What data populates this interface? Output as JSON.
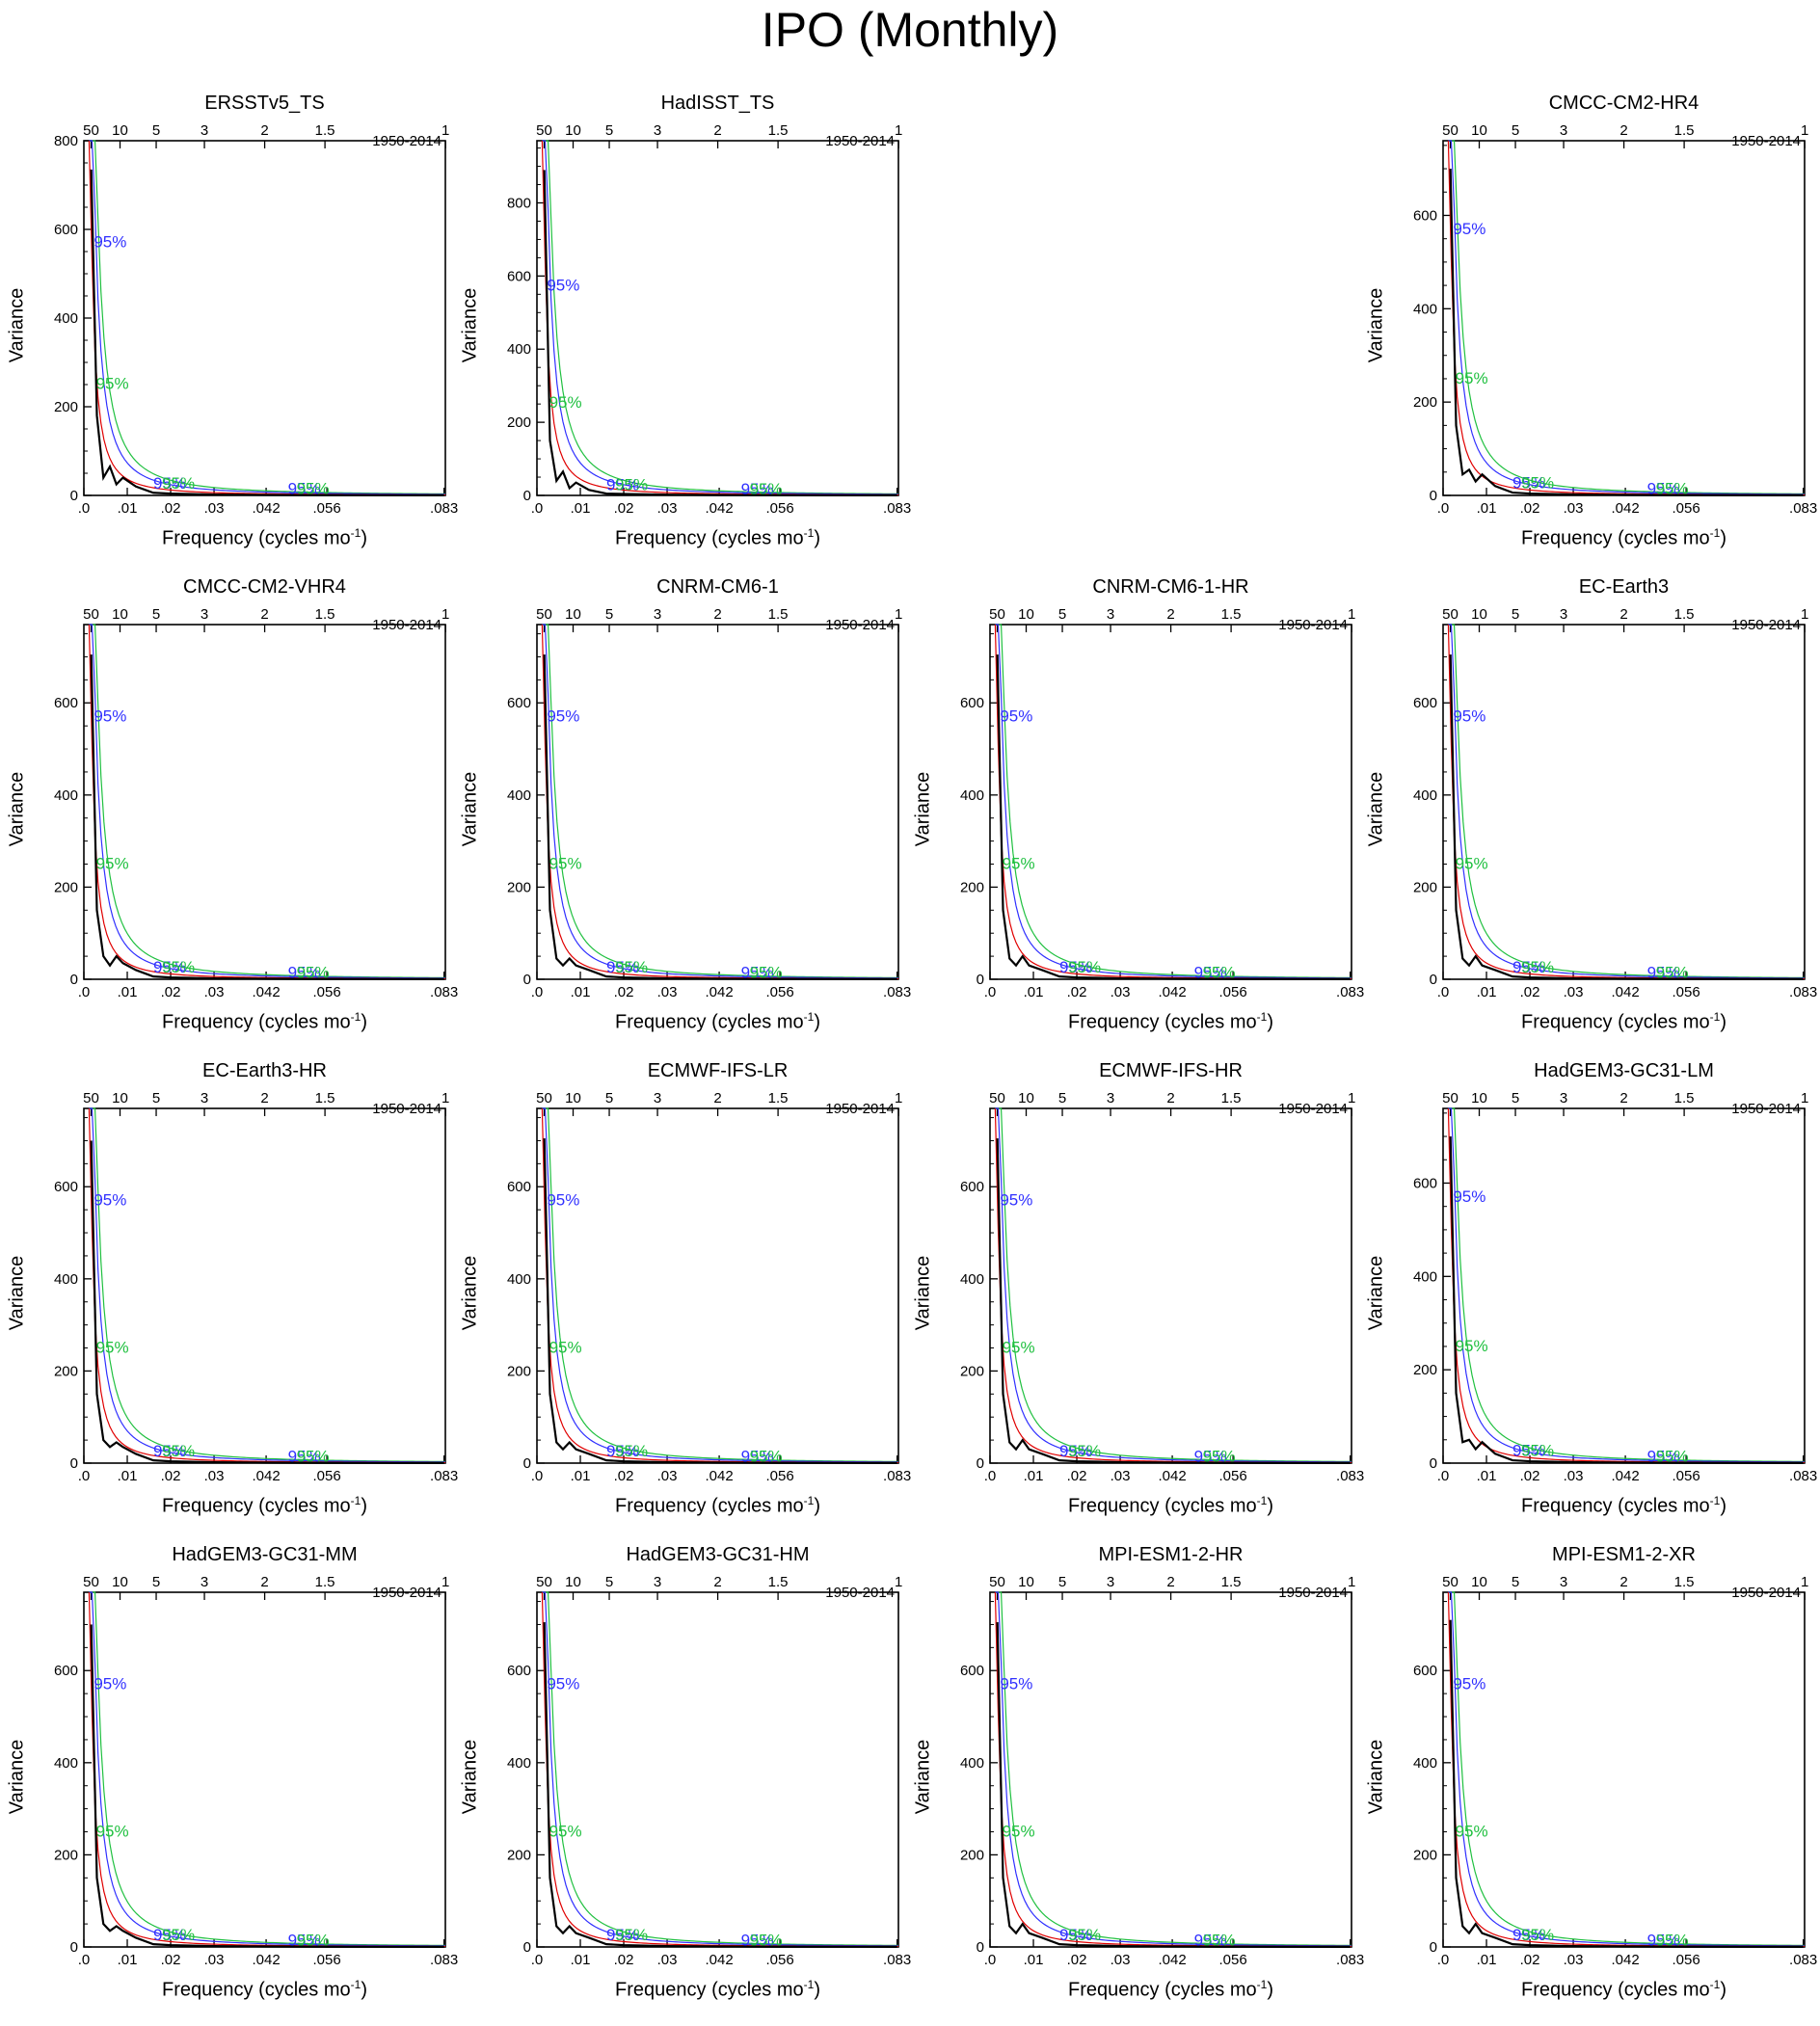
{
  "title": "IPO (Monthly)",
  "common": {
    "period": "1950-2014",
    "xlabel_prefix": "Frequency (cycles mo",
    "xlabel_sup": "-1",
    "xlabel_suffix": ")",
    "ylabel": "Variance",
    "xticks": [
      ".0",
      ".01",
      ".02",
      ".03",
      ".042",
      ".056",
      ".083"
    ],
    "xtick_values": [
      0,
      0.01,
      0.02,
      0.03,
      0.042,
      0.056,
      0.083
    ],
    "top_ticks": [
      "50",
      "10",
      "5",
      "3",
      "2",
      "1.5",
      "1"
    ],
    "top_tick_freqs": [
      0.001667,
      0.008333,
      0.016667,
      0.027778,
      0.041667,
      0.055556,
      0.083333
    ],
    "ci_label": "95%",
    "colors": {
      "spectrum": "#000000",
      "red_noise": "#e00000",
      "ci_blue": "#3030ff",
      "ci_green": "#20c040"
    }
  },
  "chart_data": [
    {
      "type": "line",
      "title": "ERSSTv5_TS",
      "ylim": [
        0,
        800
      ],
      "yticks": [
        0,
        200,
        400,
        600,
        800
      ],
      "row": 0,
      "col": 0,
      "peak": 735,
      "x": [
        0.0017,
        0.003,
        0.0045,
        0.006,
        0.0075,
        0.009,
        0.012,
        0.016,
        0.02,
        0.03,
        0.042,
        0.056,
        0.083
      ],
      "series": [
        {
          "values": [
            735,
            180,
            40,
            65,
            25,
            40,
            20,
            6,
            4,
            2,
            1,
            0.5,
            0.3
          ]
        }
      ]
    },
    {
      "type": "line",
      "title": "HadISST_TS",
      "ylim": [
        0,
        970
      ],
      "yticks": [
        0,
        200,
        400,
        600,
        800
      ],
      "row": 0,
      "col": 1,
      "peak": 890,
      "x": [
        0.0017,
        0.003,
        0.0045,
        0.006,
        0.0075,
        0.009,
        0.012,
        0.016,
        0.02,
        0.03,
        0.042,
        0.056,
        0.083
      ],
      "series": [
        {
          "values": [
            890,
            150,
            40,
            65,
            20,
            35,
            15,
            5,
            4,
            2,
            1,
            0.5,
            0.3
          ]
        }
      ]
    },
    {
      "type": "line",
      "title": "CMCC-CM2-HR4",
      "ylim": [
        0,
        760
      ],
      "yticks": [
        0,
        200,
        400,
        600
      ],
      "row": 0,
      "col": 3,
      "peak": 700,
      "x": [
        0.0017,
        0.003,
        0.0045,
        0.006,
        0.0075,
        0.009,
        0.012,
        0.016,
        0.02,
        0.03,
        0.042,
        0.056,
        0.083
      ],
      "series": [
        {
          "values": [
            700,
            150,
            45,
            55,
            30,
            45,
            20,
            6,
            4,
            2,
            1,
            0.5,
            0.3
          ]
        }
      ]
    },
    {
      "type": "line",
      "title": "CMCC-CM2-VHR4",
      "ylim": [
        0,
        770
      ],
      "yticks": [
        0,
        200,
        400,
        600
      ],
      "row": 1,
      "col": 0,
      "peak": 705,
      "x": [
        0.0017,
        0.003,
        0.0045,
        0.006,
        0.0075,
        0.009,
        0.012,
        0.016,
        0.02,
        0.03,
        0.042,
        0.056,
        0.083
      ],
      "series": [
        {
          "values": [
            705,
            150,
            50,
            30,
            50,
            35,
            20,
            6,
            4,
            2,
            1,
            0.5,
            0.3
          ]
        }
      ]
    },
    {
      "type": "line",
      "title": "CNRM-CM6-1",
      "ylim": [
        0,
        770
      ],
      "yticks": [
        0,
        200,
        400,
        600
      ],
      "row": 1,
      "col": 1,
      "peak": 705,
      "x": [
        0.0017,
        0.003,
        0.0045,
        0.006,
        0.0075,
        0.009,
        0.012,
        0.016,
        0.02,
        0.03,
        0.042,
        0.056,
        0.083
      ],
      "series": [
        {
          "values": [
            705,
            150,
            45,
            30,
            45,
            30,
            20,
            6,
            4,
            2,
            1,
            0.5,
            0.3
          ]
        }
      ]
    },
    {
      "type": "line",
      "title": "CNRM-CM6-1-HR",
      "ylim": [
        0,
        770
      ],
      "yticks": [
        0,
        200,
        400,
        600
      ],
      "row": 1,
      "col": 2,
      "peak": 705,
      "x": [
        0.0017,
        0.003,
        0.0045,
        0.006,
        0.0075,
        0.009,
        0.012,
        0.016,
        0.02,
        0.03,
        0.042,
        0.056,
        0.083
      ],
      "series": [
        {
          "values": [
            705,
            150,
            45,
            30,
            50,
            30,
            20,
            6,
            4,
            2,
            1,
            0.5,
            0.3
          ]
        }
      ]
    },
    {
      "type": "line",
      "title": "EC-Earth3",
      "ylim": [
        0,
        770
      ],
      "yticks": [
        0,
        200,
        400,
        600
      ],
      "row": 1,
      "col": 3,
      "peak": 705,
      "x": [
        0.0017,
        0.003,
        0.0045,
        0.006,
        0.0075,
        0.009,
        0.012,
        0.016,
        0.02,
        0.03,
        0.042,
        0.056,
        0.083
      ],
      "series": [
        {
          "values": [
            705,
            150,
            45,
            30,
            50,
            30,
            20,
            6,
            4,
            2,
            1,
            0.5,
            0.3
          ]
        }
      ]
    },
    {
      "type": "line",
      "title": "EC-Earth3-HR",
      "ylim": [
        0,
        770
      ],
      "yticks": [
        0,
        200,
        400,
        600
      ],
      "row": 2,
      "col": 0,
      "peak": 700,
      "x": [
        0.0017,
        0.003,
        0.0045,
        0.006,
        0.0075,
        0.009,
        0.012,
        0.016,
        0.02,
        0.03,
        0.042,
        0.056,
        0.083
      ],
      "series": [
        {
          "values": [
            700,
            150,
            50,
            35,
            45,
            35,
            20,
            6,
            4,
            2,
            1,
            0.5,
            0.3
          ]
        }
      ]
    },
    {
      "type": "line",
      "title": "ECMWF-IFS-LR",
      "ylim": [
        0,
        770
      ],
      "yticks": [
        0,
        200,
        400,
        600
      ],
      "row": 2,
      "col": 1,
      "peak": 705,
      "x": [
        0.0017,
        0.003,
        0.0045,
        0.006,
        0.0075,
        0.009,
        0.012,
        0.016,
        0.02,
        0.03,
        0.042,
        0.056,
        0.083
      ],
      "series": [
        {
          "values": [
            705,
            150,
            45,
            30,
            45,
            30,
            20,
            6,
            4,
            2,
            1,
            0.5,
            0.3
          ]
        }
      ]
    },
    {
      "type": "line",
      "title": "ECMWF-IFS-HR",
      "ylim": [
        0,
        770
      ],
      "yticks": [
        0,
        200,
        400,
        600
      ],
      "row": 2,
      "col": 2,
      "peak": 705,
      "x": [
        0.0017,
        0.003,
        0.0045,
        0.006,
        0.0075,
        0.009,
        0.012,
        0.016,
        0.02,
        0.03,
        0.042,
        0.056,
        0.083
      ],
      "series": [
        {
          "values": [
            705,
            150,
            45,
            30,
            50,
            30,
            20,
            6,
            4,
            2,
            1,
            0.5,
            0.3
          ]
        }
      ]
    },
    {
      "type": "line",
      "title": "HadGEM3-GC31-LM",
      "ylim": [
        0,
        760
      ],
      "yticks": [
        0,
        200,
        400,
        600
      ],
      "row": 2,
      "col": 3,
      "peak": 700,
      "x": [
        0.0017,
        0.003,
        0.0045,
        0.006,
        0.0075,
        0.009,
        0.012,
        0.016,
        0.02,
        0.03,
        0.042,
        0.056,
        0.083
      ],
      "series": [
        {
          "values": [
            700,
            150,
            45,
            50,
            30,
            45,
            20,
            6,
            4,
            2,
            1,
            0.5,
            0.3
          ]
        }
      ]
    },
    {
      "type": "line",
      "title": "HadGEM3-GC31-MM",
      "ylim": [
        0,
        770
      ],
      "yticks": [
        0,
        200,
        400,
        600
      ],
      "row": 3,
      "col": 0,
      "peak": 700,
      "x": [
        0.0017,
        0.003,
        0.0045,
        0.006,
        0.0075,
        0.009,
        0.012,
        0.016,
        0.02,
        0.03,
        0.042,
        0.056,
        0.083
      ],
      "series": [
        {
          "values": [
            700,
            150,
            50,
            35,
            45,
            35,
            20,
            6,
            4,
            2,
            1,
            0.5,
            0.3
          ]
        }
      ]
    },
    {
      "type": "line",
      "title": "HadGEM3-GC31-HM",
      "ylim": [
        0,
        770
      ],
      "yticks": [
        0,
        200,
        400,
        600
      ],
      "row": 3,
      "col": 1,
      "peak": 705,
      "x": [
        0.0017,
        0.003,
        0.0045,
        0.006,
        0.0075,
        0.009,
        0.012,
        0.016,
        0.02,
        0.03,
        0.042,
        0.056,
        0.083
      ],
      "series": [
        {
          "values": [
            705,
            150,
            45,
            30,
            45,
            30,
            20,
            6,
            4,
            2,
            1,
            0.5,
            0.3
          ]
        }
      ]
    },
    {
      "type": "line",
      "title": "MPI-ESM1-2-HR",
      "ylim": [
        0,
        770
      ],
      "yticks": [
        0,
        200,
        400,
        600
      ],
      "row": 3,
      "col": 2,
      "peak": 705,
      "x": [
        0.0017,
        0.003,
        0.0045,
        0.006,
        0.0075,
        0.009,
        0.012,
        0.016,
        0.02,
        0.03,
        0.042,
        0.056,
        0.083
      ],
      "series": [
        {
          "values": [
            705,
            150,
            45,
            30,
            50,
            30,
            20,
            6,
            4,
            2,
            1,
            0.5,
            0.3
          ]
        }
      ]
    },
    {
      "type": "line",
      "title": "MPI-ESM1-2-XR",
      "ylim": [
        0,
        770
      ],
      "yticks": [
        0,
        200,
        400,
        600
      ],
      "row": 3,
      "col": 3,
      "peak": 710,
      "x": [
        0.0017,
        0.003,
        0.0045,
        0.006,
        0.0075,
        0.009,
        0.012,
        0.016,
        0.02,
        0.03,
        0.042,
        0.056,
        0.083
      ],
      "series": [
        {
          "values": [
            710,
            150,
            45,
            30,
            50,
            30,
            20,
            6,
            4,
            2,
            1,
            0.5,
            0.3
          ]
        }
      ]
    }
  ]
}
